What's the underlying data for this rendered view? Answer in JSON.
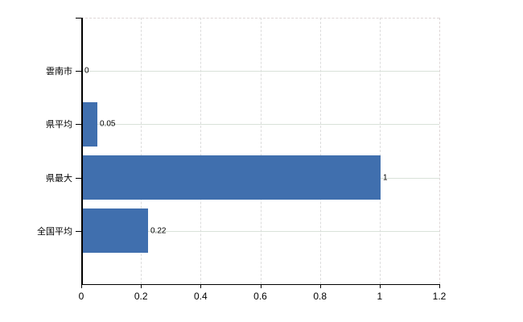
{
  "chart_data": {
    "type": "bar",
    "orientation": "horizontal",
    "title": "",
    "xlabel": "",
    "ylabel": "",
    "categories": [
      "雲南市",
      "県平均",
      "県最大",
      "全国平均"
    ],
    "values": [
      0,
      0.05,
      1,
      0.22
    ],
    "value_labels": [
      "0",
      "0.05",
      "1",
      "0.22"
    ],
    "x_ticks": [
      0,
      0.2,
      0.4,
      0.6,
      0.8,
      1,
      1.2
    ],
    "x_tick_labels": [
      "0",
      "0.2",
      "0.4",
      "0.6",
      "0.8",
      "1",
      "1.2"
    ],
    "xlim": [
      0,
      1.2
    ],
    "grid": true,
    "legend": false,
    "colors": {
      "bar": "#406FAE",
      "axis": "#000000",
      "h_gridline": "#d9e2d9",
      "v_gridline": "#dcdcdc",
      "plot_border_dashed": "#ded6d6",
      "background": "#ffffff",
      "text": "#000000"
    }
  }
}
